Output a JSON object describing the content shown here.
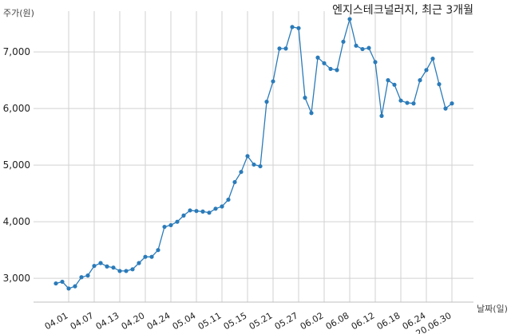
{
  "chart_data": {
    "type": "line",
    "title": "엔지스테크널러지, 최근 3개월",
    "ylabel": "주가(원)",
    "xlabel": "날짜(일)",
    "ylim": [
      2580,
      7720
    ],
    "yticks": [
      3000,
      4000,
      5000,
      6000,
      7000
    ],
    "ytick_labels": [
      "3,000",
      "4,000",
      "5,000",
      "6,000",
      "7,000"
    ],
    "xtick_labels": [
      "04.01",
      "04.07",
      "04.13",
      "04.20",
      "04.24",
      "05.04",
      "05.11",
      "05.15",
      "05.21",
      "05.27",
      "06.02",
      "06.08",
      "06.12",
      "06.18",
      "06.24",
      "20.06.30"
    ],
    "xtick_index": [
      2,
      6,
      10,
      14,
      18,
      22,
      26,
      30,
      34,
      38,
      42,
      46,
      50,
      54,
      58,
      62
    ],
    "grid": true,
    "color": "#2b7bb9",
    "series": [
      {
        "values": [
          2910,
          2940,
          2820,
          2860,
          3020,
          3050,
          3220,
          3270,
          3210,
          3190,
          3130,
          3130,
          3160,
          3270,
          3380,
          3380,
          3500,
          3910,
          3940,
          4000,
          4110,
          4200,
          4190,
          4180,
          4160,
          4230,
          4270,
          4390,
          4700,
          4880,
          5160,
          5010,
          4980,
          6120,
          6480,
          7060,
          7060,
          7440,
          7420,
          6190,
          5920,
          6900,
          6800,
          6700,
          6680,
          7180,
          7580,
          7110,
          7050,
          7070,
          6820,
          5870,
          6500,
          6420,
          6140,
          6100,
          6090,
          6500,
          6680,
          6880,
          6430,
          6000,
          6090
        ]
      }
    ]
  }
}
